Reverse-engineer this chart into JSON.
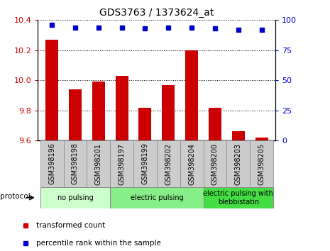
{
  "title": "GDS3763 / 1373624_at",
  "categories": [
    "GSM398196",
    "GSM398198",
    "GSM398201",
    "GSM398197",
    "GSM398199",
    "GSM398202",
    "GSM398204",
    "GSM398200",
    "GSM398203",
    "GSM398205"
  ],
  "bar_values": [
    10.27,
    9.94,
    9.99,
    10.03,
    9.82,
    9.97,
    10.2,
    9.82,
    9.66,
    9.62
  ],
  "dot_values": [
    96,
    94,
    94,
    94,
    93,
    94,
    94,
    93,
    92,
    92
  ],
  "ylim_left": [
    9.6,
    10.4
  ],
  "ylim_right": [
    0,
    100
  ],
  "yticks_left": [
    9.6,
    9.8,
    10.0,
    10.2,
    10.4
  ],
  "yticks_right": [
    0,
    25,
    50,
    75,
    100
  ],
  "bar_color": "#cc0000",
  "dot_color": "#0000cc",
  "tick_label_color_left": "#cc0000",
  "tick_label_color_right": "#0000cc",
  "groups": [
    {
      "label": "no pulsing",
      "span": [
        0,
        3
      ],
      "color": "#ccffcc"
    },
    {
      "label": "electric pulsing",
      "span": [
        3,
        7
      ],
      "color": "#88ee88"
    },
    {
      "label": "electric pulsing with\nblebbistatin",
      "span": [
        7,
        10
      ],
      "color": "#44dd44"
    }
  ],
  "legend_items": [
    {
      "label": "transformed count",
      "color": "#cc0000"
    },
    {
      "label": "percentile rank within the sample",
      "color": "#0000cc"
    }
  ],
  "protocol_label": "protocol",
  "bar_width": 0.55
}
